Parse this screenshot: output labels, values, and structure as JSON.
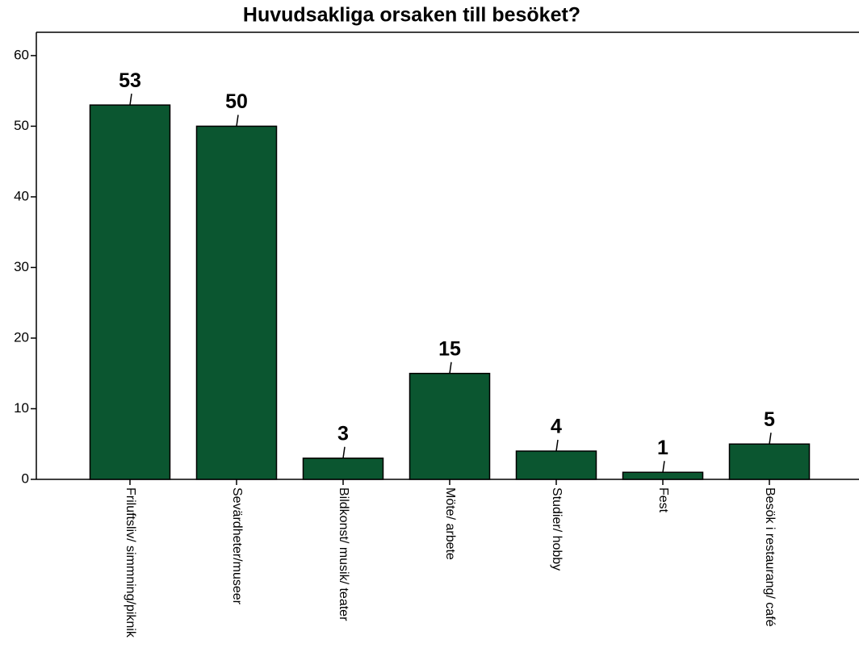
{
  "chart_data": {
    "type": "bar",
    "title": "Huvudsakliga orsaken till besöket?",
    "categories": [
      "Friluftsliv/ simmning/piknik",
      "Sevärdheter/museer",
      "Bildkonst/ musik/ teater",
      "Möte/ arbete",
      "Studier/ hobby",
      "Fest",
      "Besök i restaurang/ café"
    ],
    "values": [
      53,
      50,
      3,
      15,
      4,
      1,
      5
    ],
    "color": "#0b5630",
    "ylim": [
      0,
      63.3
    ],
    "yticks": [
      0,
      10,
      20,
      30,
      40,
      50,
      60
    ],
    "grid": false
  }
}
